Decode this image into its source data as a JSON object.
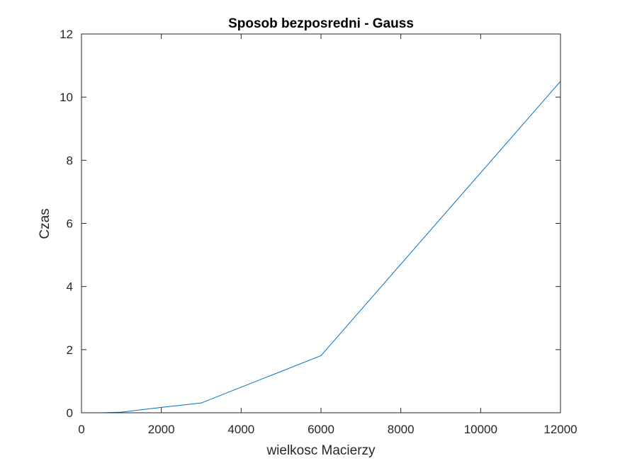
{
  "chart_data": {
    "type": "line",
    "title": "Sposob bezposredni - Gauss",
    "xlabel": "wielkosc Macierzy",
    "ylabel": "Czas",
    "xlim": [
      0,
      12000
    ],
    "ylim": [
      0,
      12
    ],
    "xticks": [
      0,
      2000,
      4000,
      6000,
      8000,
      10000,
      12000
    ],
    "yticks": [
      0,
      2,
      4,
      6,
      8,
      10,
      12
    ],
    "xtick_labels": [
      "0",
      "2000",
      "4000",
      "6000",
      "8000",
      "10000",
      "12000"
    ],
    "ytick_labels": [
      "0",
      "2",
      "4",
      "6",
      "8",
      "10",
      "12"
    ],
    "grid": false,
    "box": true,
    "series": [
      {
        "color": "#0072BD",
        "x": [
          500,
          1000,
          2000,
          3000,
          6000,
          12000
        ],
        "y": [
          0.0,
          0.02,
          0.17,
          0.31,
          1.81,
          10.5
        ]
      }
    ]
  }
}
